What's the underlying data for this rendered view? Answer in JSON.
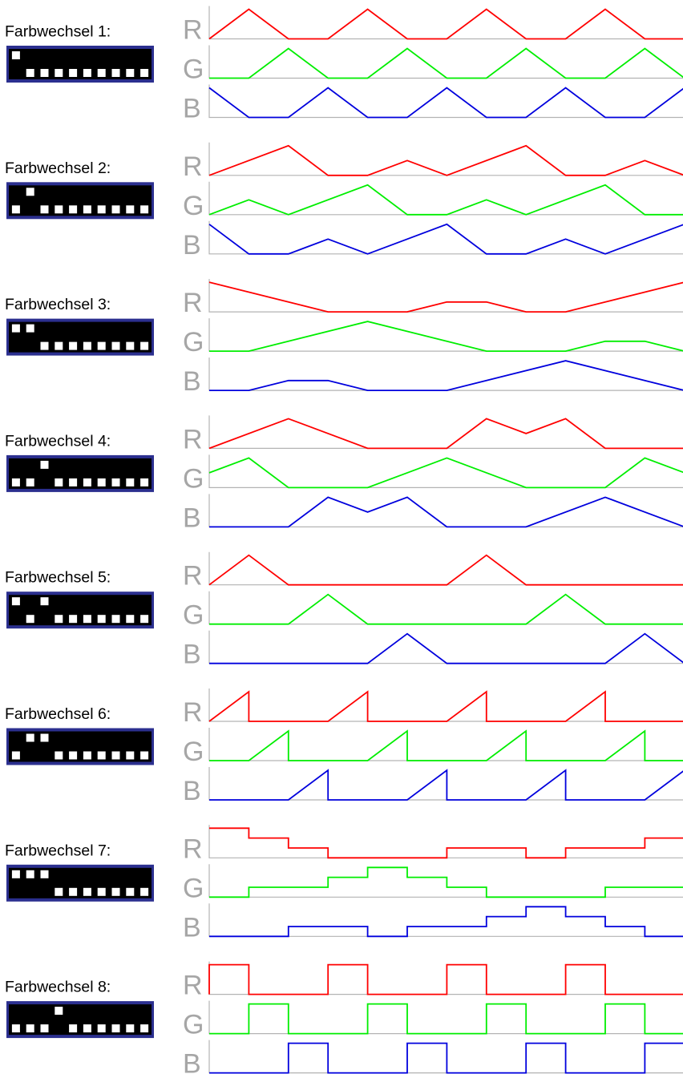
{
  "channel_labels": {
    "r": "R",
    "g": "G",
    "b": "B"
  },
  "colors": {
    "r": "#ff0000",
    "g": "#00ee00",
    "b": "#0000dd",
    "dip_frame": "#2b2f8f",
    "dip_body": "#000000",
    "dip_knob": "#ffffff",
    "axis": "#b3b3b3",
    "channel_label": "#a6a6a6"
  },
  "programs": [
    {
      "label": "Farbwechsel 1:",
      "dip": [
        1,
        0,
        0,
        0,
        0,
        0,
        0,
        0,
        0,
        0
      ],
      "r": [
        [
          0,
          0
        ],
        [
          1,
          1
        ],
        [
          2,
          0
        ],
        [
          3,
          0
        ],
        [
          4,
          1
        ],
        [
          5,
          0
        ],
        [
          6,
          0
        ],
        [
          7,
          1
        ],
        [
          8,
          0
        ],
        [
          9,
          0
        ],
        [
          10,
          1
        ],
        [
          11,
          0
        ],
        [
          12,
          0
        ]
      ],
      "g": [
        [
          0,
          0
        ],
        [
          1,
          0
        ],
        [
          2,
          1
        ],
        [
          3,
          0
        ],
        [
          4,
          0
        ],
        [
          5,
          1
        ],
        [
          6,
          0
        ],
        [
          7,
          0
        ],
        [
          8,
          1
        ],
        [
          9,
          0
        ],
        [
          10,
          0
        ],
        [
          11,
          1
        ],
        [
          12,
          0
        ]
      ],
      "b": [
        [
          0,
          1
        ],
        [
          1,
          0
        ],
        [
          2,
          0
        ],
        [
          3,
          1
        ],
        [
          4,
          0
        ],
        [
          5,
          0
        ],
        [
          6,
          1
        ],
        [
          7,
          0
        ],
        [
          8,
          0
        ],
        [
          9,
          1
        ],
        [
          10,
          0
        ],
        [
          11,
          0
        ],
        [
          12,
          1
        ]
      ]
    },
    {
      "label": "Farbwechsel 2:",
      "dip": [
        0,
        1,
        0,
        0,
        0,
        0,
        0,
        0,
        0,
        0
      ],
      "r": [
        [
          0,
          0
        ],
        [
          2,
          1
        ],
        [
          3,
          0
        ],
        [
          4,
          0
        ],
        [
          5,
          0.5
        ],
        [
          6,
          0
        ],
        [
          8,
          1
        ],
        [
          9,
          0
        ],
        [
          10,
          0
        ],
        [
          11,
          0.5
        ],
        [
          12,
          0
        ]
      ],
      "g": [
        [
          0,
          0
        ],
        [
          1,
          0.5
        ],
        [
          2,
          0
        ],
        [
          4,
          1
        ],
        [
          5,
          0
        ],
        [
          6,
          0
        ],
        [
          7,
          0.5
        ],
        [
          8,
          0
        ],
        [
          10,
          1
        ],
        [
          11,
          0
        ],
        [
          12,
          0
        ]
      ],
      "b": [
        [
          0,
          1
        ],
        [
          1,
          0
        ],
        [
          2,
          0
        ],
        [
          3,
          0.5
        ],
        [
          4,
          0
        ],
        [
          6,
          1
        ],
        [
          7,
          0
        ],
        [
          8,
          0
        ],
        [
          9,
          0.5
        ],
        [
          10,
          0
        ],
        [
          12,
          1
        ]
      ]
    },
    {
      "label": "Farbwechsel 3:",
      "dip": [
        1,
        1,
        0,
        0,
        0,
        0,
        0,
        0,
        0,
        0
      ],
      "r": [
        [
          0,
          1
        ],
        [
          3,
          0
        ],
        [
          5,
          0
        ],
        [
          6,
          0.333
        ],
        [
          7,
          0.333
        ],
        [
          8,
          0
        ],
        [
          9,
          0
        ],
        [
          12,
          1
        ]
      ],
      "g": [
        [
          0,
          0
        ],
        [
          1,
          0
        ],
        [
          4,
          1
        ],
        [
          7,
          0
        ],
        [
          9,
          0
        ],
        [
          10,
          0.333
        ],
        [
          11,
          0.333
        ],
        [
          12,
          0
        ]
      ],
      "b": [
        [
          0,
          0
        ],
        [
          1,
          0
        ],
        [
          2,
          0.333
        ],
        [
          3,
          0.333
        ],
        [
          4,
          0
        ],
        [
          6,
          0
        ],
        [
          9,
          1
        ],
        [
          12,
          0
        ]
      ]
    },
    {
      "label": "Farbwechsel 4:",
      "dip": [
        0,
        0,
        1,
        0,
        0,
        0,
        0,
        0,
        0,
        0
      ],
      "r": [
        [
          0,
          0
        ],
        [
          2,
          1
        ],
        [
          4,
          0
        ],
        [
          6,
          0
        ],
        [
          7,
          1
        ],
        [
          8,
          0.5
        ],
        [
          9,
          1
        ],
        [
          10,
          0
        ],
        [
          12,
          0
        ]
      ],
      "g": [
        [
          0,
          0.5
        ],
        [
          1,
          1
        ],
        [
          2,
          0
        ],
        [
          4,
          0
        ],
        [
          6,
          1
        ],
        [
          8,
          0
        ],
        [
          10,
          0
        ],
        [
          11,
          1
        ],
        [
          12,
          0.5
        ]
      ],
      "b": [
        [
          0,
          0
        ],
        [
          2,
          0
        ],
        [
          3,
          1
        ],
        [
          4,
          0.5
        ],
        [
          5,
          1
        ],
        [
          6,
          0
        ],
        [
          8,
          0
        ],
        [
          10,
          1
        ],
        [
          12,
          0
        ]
      ]
    },
    {
      "label": "Farbwechsel 5:",
      "dip": [
        1,
        0,
        1,
        0,
        0,
        0,
        0,
        0,
        0,
        0
      ],
      "r": [
        [
          0,
          0
        ],
        [
          1,
          1
        ],
        [
          2,
          0
        ],
        [
          6,
          0
        ],
        [
          7,
          1
        ],
        [
          8,
          0
        ],
        [
          12,
          0
        ]
      ],
      "g": [
        [
          0,
          0
        ],
        [
          2,
          0
        ],
        [
          3,
          1
        ],
        [
          4,
          0
        ],
        [
          8,
          0
        ],
        [
          9,
          1
        ],
        [
          10,
          0
        ],
        [
          12,
          0
        ]
      ],
      "b": [
        [
          0,
          0
        ],
        [
          4,
          0
        ],
        [
          5,
          1
        ],
        [
          6,
          0
        ],
        [
          10,
          0
        ],
        [
          11,
          1
        ],
        [
          12,
          0
        ]
      ]
    },
    {
      "label": "Farbwechsel 6:",
      "dip": [
        0,
        1,
        1,
        0,
        0,
        0,
        0,
        0,
        0,
        0
      ],
      "r": [
        [
          0,
          0
        ],
        [
          1,
          1
        ],
        [
          1,
          0
        ],
        [
          3,
          0
        ],
        [
          4,
          1
        ],
        [
          4,
          0
        ],
        [
          6,
          0
        ],
        [
          7,
          1
        ],
        [
          7,
          0
        ],
        [
          9,
          0
        ],
        [
          10,
          1
        ],
        [
          10,
          0
        ],
        [
          12,
          0
        ]
      ],
      "g": [
        [
          0,
          0
        ],
        [
          1,
          0
        ],
        [
          2,
          1
        ],
        [
          2,
          0
        ],
        [
          4,
          0
        ],
        [
          5,
          1
        ],
        [
          5,
          0
        ],
        [
          7,
          0
        ],
        [
          8,
          1
        ],
        [
          8,
          0
        ],
        [
          10,
          0
        ],
        [
          11,
          1
        ],
        [
          11,
          0
        ],
        [
          12,
          0
        ]
      ],
      "b": [
        [
          0,
          0
        ],
        [
          2,
          0
        ],
        [
          3,
          1
        ],
        [
          3,
          0
        ],
        [
          5,
          0
        ],
        [
          6,
          1
        ],
        [
          6,
          0
        ],
        [
          8,
          0
        ],
        [
          9,
          1
        ],
        [
          9,
          0
        ],
        [
          11,
          0
        ],
        [
          12,
          1
        ]
      ]
    },
    {
      "label": "Farbwechsel 7:",
      "dip": [
        1,
        1,
        1,
        0,
        0,
        0,
        0,
        0,
        0,
        0
      ],
      "r": [
        [
          0,
          1
        ],
        [
          1,
          1
        ],
        [
          1,
          0.667
        ],
        [
          2,
          0.667
        ],
        [
          2,
          0.333
        ],
        [
          3,
          0.333
        ],
        [
          3,
          0
        ],
        [
          6,
          0
        ],
        [
          6,
          0.333
        ],
        [
          8,
          0.333
        ],
        [
          8,
          0
        ],
        [
          9,
          0
        ],
        [
          9,
          0.333
        ],
        [
          11,
          0.333
        ],
        [
          11,
          0.667
        ],
        [
          12,
          0.667
        ]
      ],
      "g": [
        [
          0,
          0
        ],
        [
          1,
          0
        ],
        [
          1,
          0.333
        ],
        [
          3,
          0.333
        ],
        [
          3,
          0.667
        ],
        [
          4,
          0.667
        ],
        [
          4,
          1
        ],
        [
          5,
          1
        ],
        [
          5,
          0.667
        ],
        [
          6,
          0.667
        ],
        [
          6,
          0.333
        ],
        [
          7,
          0.333
        ],
        [
          7,
          0
        ],
        [
          10,
          0
        ],
        [
          10,
          0.333
        ],
        [
          12,
          0.333
        ]
      ],
      "b": [
        [
          0,
          0
        ],
        [
          2,
          0
        ],
        [
          2,
          0.333
        ],
        [
          4,
          0.333
        ],
        [
          4,
          0
        ],
        [
          5,
          0
        ],
        [
          5,
          0.333
        ],
        [
          7,
          0.333
        ],
        [
          7,
          0.667
        ],
        [
          8,
          0.667
        ],
        [
          8,
          1
        ],
        [
          9,
          1
        ],
        [
          9,
          0.667
        ],
        [
          10,
          0.667
        ],
        [
          10,
          0.333
        ],
        [
          11,
          0.333
        ],
        [
          11,
          0
        ],
        [
          12,
          0
        ]
      ]
    },
    {
      "label": "Farbwechsel 8:",
      "dip": [
        0,
        0,
        0,
        1,
        0,
        0,
        0,
        0,
        0,
        0
      ],
      "r": [
        [
          0,
          0
        ],
        [
          0,
          1
        ],
        [
          1,
          1
        ],
        [
          1,
          0
        ],
        [
          3,
          0
        ],
        [
          3,
          1
        ],
        [
          4,
          1
        ],
        [
          4,
          0
        ],
        [
          6,
          0
        ],
        [
          6,
          1
        ],
        [
          7,
          1
        ],
        [
          7,
          0
        ],
        [
          9,
          0
        ],
        [
          9,
          1
        ],
        [
          10,
          1
        ],
        [
          10,
          0
        ],
        [
          12,
          0
        ]
      ],
      "g": [
        [
          0,
          0
        ],
        [
          1,
          0
        ],
        [
          1,
          1
        ],
        [
          2,
          1
        ],
        [
          2,
          0
        ],
        [
          4,
          0
        ],
        [
          4,
          1
        ],
        [
          5,
          1
        ],
        [
          5,
          0
        ],
        [
          7,
          0
        ],
        [
          7,
          1
        ],
        [
          8,
          1
        ],
        [
          8,
          0
        ],
        [
          10,
          0
        ],
        [
          10,
          1
        ],
        [
          11,
          1
        ],
        [
          11,
          0
        ],
        [
          12,
          0
        ]
      ],
      "b": [
        [
          0,
          0
        ],
        [
          2,
          0
        ],
        [
          2,
          1
        ],
        [
          3,
          1
        ],
        [
          3,
          0
        ],
        [
          5,
          0
        ],
        [
          5,
          1
        ],
        [
          6,
          1
        ],
        [
          6,
          0
        ],
        [
          8,
          0
        ],
        [
          8,
          1
        ],
        [
          9,
          1
        ],
        [
          9,
          0
        ],
        [
          11,
          0
        ],
        [
          11,
          1
        ],
        [
          12,
          1
        ]
      ]
    }
  ]
}
